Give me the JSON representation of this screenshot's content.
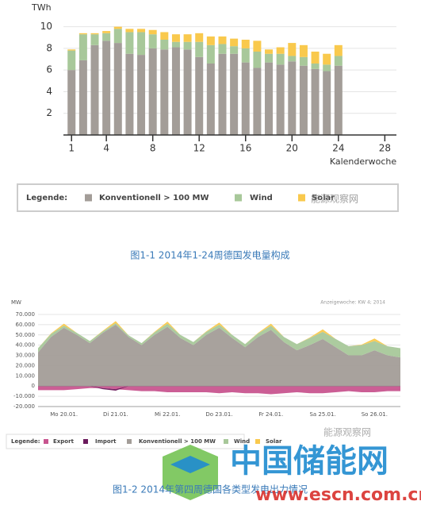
{
  "chart_data": [
    {
      "type": "bar",
      "stacked": true,
      "y_label": "TWh",
      "x_label": "Kalenderwoche",
      "x": [
        1,
        2,
        3,
        4,
        5,
        6,
        7,
        8,
        9,
        10,
        11,
        12,
        13,
        14,
        15,
        16,
        17,
        18,
        19,
        20,
        21,
        22,
        23,
        24
      ],
      "xlim": [
        0.3,
        29
      ],
      "xticks": [
        1,
        4,
        8,
        12,
        16,
        20,
        24,
        28
      ],
      "ylim": [
        0,
        11
      ],
      "yticks": [
        2,
        4,
        6,
        8,
        10
      ],
      "grid": true,
      "legend_title": "Legende:",
      "series": [
        {
          "name": "Konventionell > 100 MW",
          "color": "#a39d98",
          "values": [
            6.0,
            6.9,
            8.3,
            8.7,
            8.5,
            7.5,
            7.4,
            8.0,
            7.9,
            8.1,
            7.9,
            7.2,
            6.6,
            7.5,
            7.5,
            6.7,
            6.2,
            6.7,
            6.5,
            6.8,
            6.4,
            6.1,
            5.9,
            6.4
          ]
        },
        {
          "name": "Wind",
          "color": "#a8c89a",
          "values": [
            1.8,
            2.4,
            1.0,
            0.7,
            1.3,
            2.0,
            2.1,
            1.3,
            0.9,
            0.5,
            0.7,
            1.4,
            1.7,
            0.9,
            0.7,
            1.3,
            1.5,
            0.8,
            1.0,
            0.5,
            0.8,
            0.5,
            0.6,
            0.9
          ]
        },
        {
          "name": "Solar",
          "color": "#f9c94d",
          "values": [
            0.1,
            0.1,
            0.1,
            0.2,
            0.2,
            0.3,
            0.3,
            0.4,
            0.7,
            0.7,
            0.7,
            0.8,
            0.8,
            0.7,
            0.7,
            0.8,
            1.0,
            0.4,
            0.6,
            1.2,
            1.1,
            1.1,
            1.0,
            1.0
          ]
        }
      ],
      "caption": "图1-1 2014年1-24周德国发电量构成"
    },
    {
      "type": "area",
      "stacked": true,
      "y_label": "MW",
      "subtitle": "Anzeigewoche: KW 4; 2014",
      "categories": [
        null,
        null,
        "Mo 20.01.",
        null,
        null,
        null,
        "Di 21.01.",
        null,
        null,
        null,
        "Mi 22.01.",
        null,
        null,
        null,
        "Do 23.01.",
        null,
        null,
        null,
        "Fr 24.01.",
        null,
        null,
        null,
        "Sa 25.01.",
        null,
        null,
        null,
        "So 26.01.",
        null,
        null
      ],
      "ylim": [
        -20000,
        70000
      ],
      "yticks": [
        {
          "value": 70000,
          "label": "70.000"
        },
        {
          "value": 60000,
          "label": "60.000"
        },
        {
          "value": 50000,
          "label": "50.000"
        },
        {
          "value": 40000,
          "label": "40.000"
        },
        {
          "value": 30000,
          "label": "30.000"
        },
        {
          "value": 20000,
          "label": "20.000"
        },
        {
          "value": 10000,
          "label": "10.000"
        },
        0,
        {
          "value": -10000,
          "label": "-10.000"
        },
        {
          "value": -20000,
          "label": "-20.000"
        }
      ],
      "grid": true,
      "legend_title": "Legende:",
      "series": [
        {
          "name": "Export",
          "color": "#c8558f",
          "values": [
            -4000,
            -4000,
            -4000,
            -3000,
            -2000,
            -2000,
            -3000,
            -4000,
            -5000,
            -5000,
            -6000,
            -6000,
            -6000,
            -6000,
            -7000,
            -6000,
            -7000,
            -7000,
            -8000,
            -7000,
            -6000,
            -7000,
            -7000,
            -6000,
            -5000,
            -6000,
            -6000,
            -5000,
            -5000
          ]
        },
        {
          "name": "Import",
          "color": "#6b1a5c",
          "values": [
            0,
            0,
            0,
            0,
            0,
            -1000,
            -1500,
            0,
            0,
            0,
            0,
            0,
            0,
            0,
            0,
            0,
            0,
            0,
            0,
            0,
            0,
            0,
            0,
            0,
            0,
            0,
            0,
            0,
            0
          ]
        },
        {
          "name": "Konventionell > 100 MW",
          "color": "#a39d98",
          "values": [
            33000,
            48000,
            57000,
            50000,
            42000,
            52000,
            60000,
            48000,
            40000,
            50000,
            58000,
            47000,
            40000,
            50000,
            57000,
            47000,
            38000,
            48000,
            55000,
            43000,
            35000,
            40000,
            46000,
            38000,
            30000,
            30000,
            35000,
            30000,
            28000
          ]
        },
        {
          "name": "Wind",
          "color": "#a8c89a",
          "values": [
            4000,
            3000,
            2000,
            2000,
            2000,
            1500,
            1500,
            1500,
            2000,
            2500,
            3000,
            3000,
            3000,
            3000,
            3000,
            3000,
            3000,
            3500,
            4000,
            5000,
            6000,
            7000,
            7000,
            8000,
            9000,
            10000,
            9000,
            9000,
            9000
          ]
        },
        {
          "name": "Solar",
          "color": "#f9c94d",
          "values": [
            0,
            500,
            2000,
            0,
            0,
            500,
            2000,
            0,
            0,
            500,
            2000,
            0,
            0,
            500,
            2000,
            0,
            0,
            500,
            2000,
            0,
            0,
            500,
            2500,
            0,
            0,
            500,
            2500,
            0,
            0
          ]
        }
      ],
      "caption": "图1-2 2014年第四周德国各类型发电出力情况"
    }
  ],
  "watermarks": [
    "能源观察网",
    "能源观察网",
    "中国储能网",
    "www.escn.com.cn"
  ]
}
